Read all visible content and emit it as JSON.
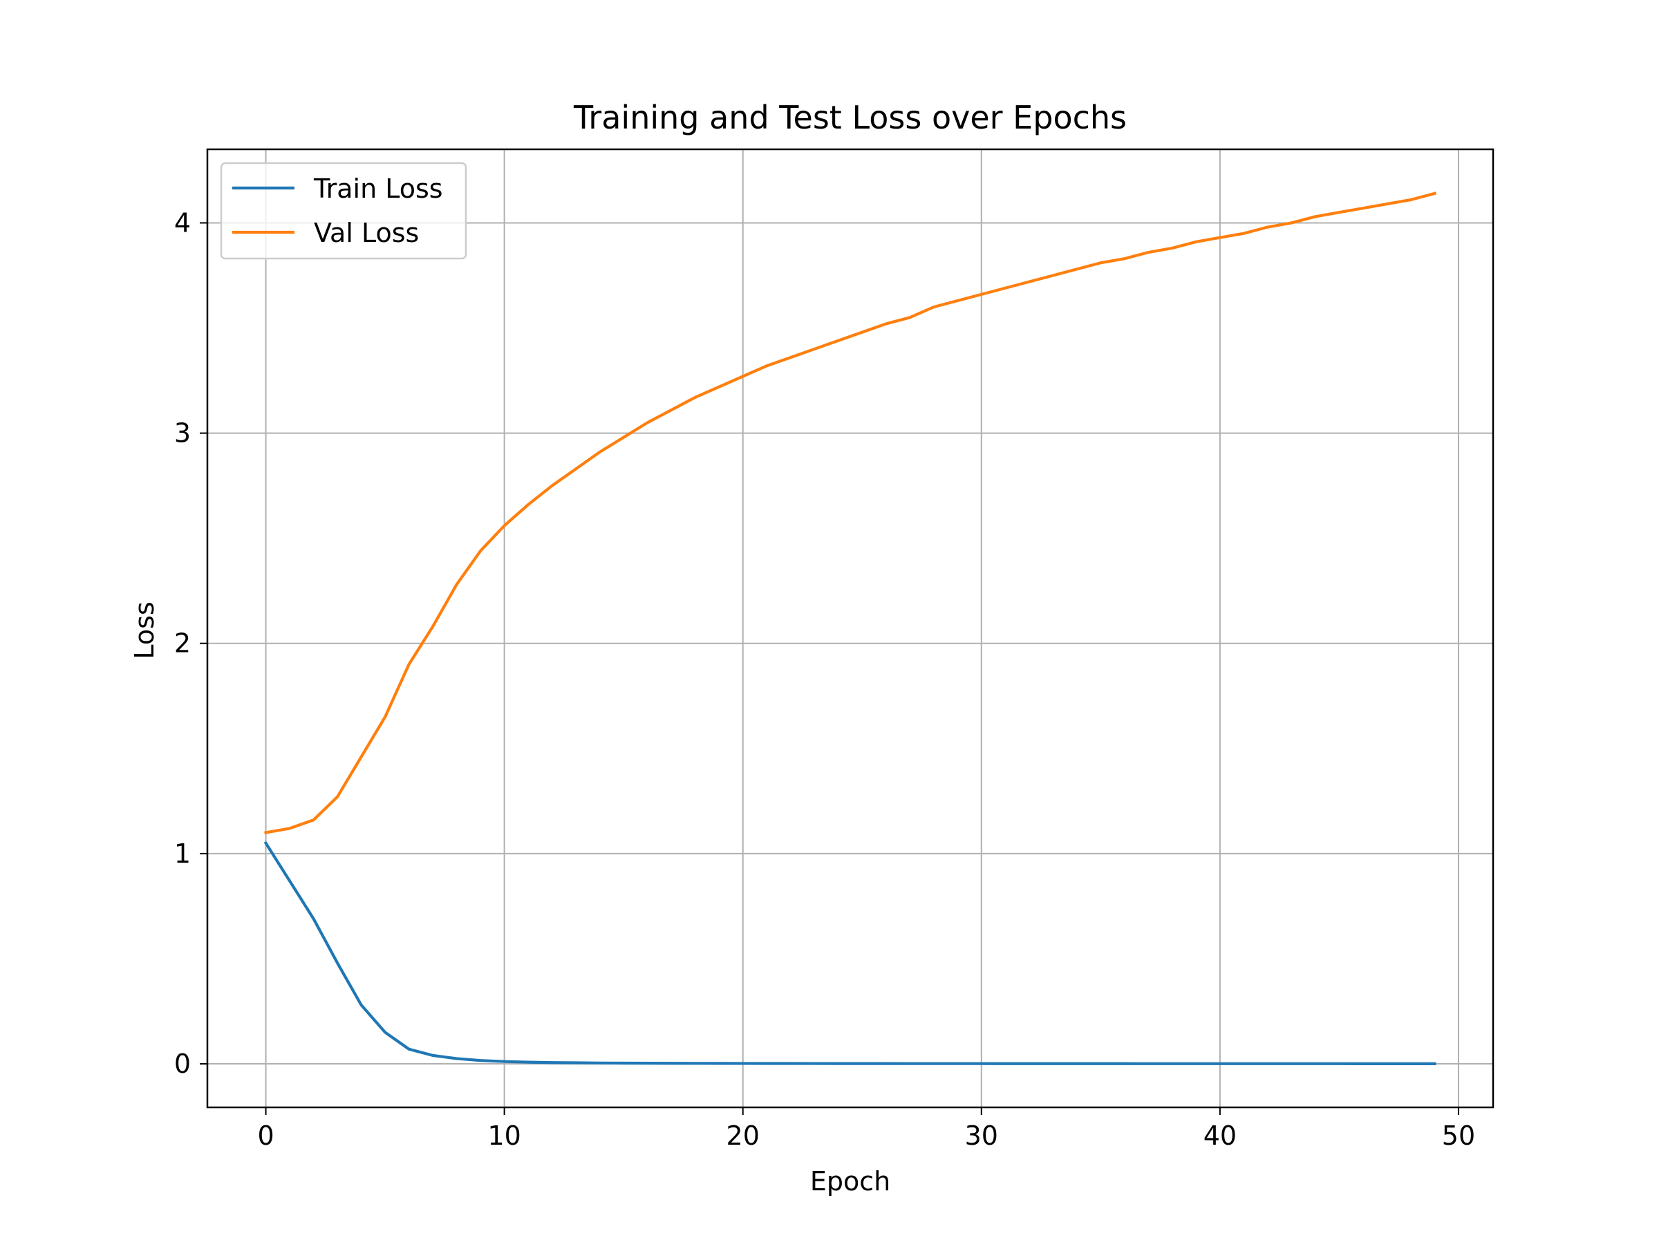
{
  "chart_data": {
    "type": "line",
    "title": "Training and Test Loss over Epochs",
    "xlabel": "Epoch",
    "ylabel": "Loss",
    "xlim": [
      -2.45,
      51.45
    ],
    "ylim": [
      -0.207,
      4.35
    ],
    "xticks": [
      0,
      10,
      20,
      30,
      40,
      50
    ],
    "yticks": [
      0,
      1,
      2,
      3,
      4
    ],
    "grid": true,
    "legend_position": "upper-left",
    "x": [
      0,
      1,
      2,
      3,
      4,
      5,
      6,
      7,
      8,
      9,
      10,
      11,
      12,
      13,
      14,
      15,
      16,
      17,
      18,
      19,
      20,
      21,
      22,
      23,
      24,
      25,
      26,
      27,
      28,
      29,
      30,
      31,
      32,
      33,
      34,
      35,
      36,
      37,
      38,
      39,
      40,
      41,
      42,
      43,
      44,
      45,
      46,
      47,
      48,
      49
    ],
    "series": [
      {
        "name": "Train Loss",
        "color": "#1f77b4",
        "values": [
          1.05,
          0.87,
          0.69,
          0.48,
          0.28,
          0.15,
          0.07,
          0.04,
          0.025,
          0.016,
          0.011,
          0.008,
          0.006,
          0.005,
          0.004,
          0.0035,
          0.003,
          0.0027,
          0.0024,
          0.0022,
          0.002,
          0.0018,
          0.0017,
          0.0016,
          0.0015,
          0.0014,
          0.0013,
          0.0012,
          0.0012,
          0.0011,
          0.0011,
          0.001,
          0.001,
          0.001,
          0.0009,
          0.0009,
          0.0009,
          0.0008,
          0.0008,
          0.0008,
          0.0008,
          0.0007,
          0.0007,
          0.0007,
          0.0007,
          0.0007,
          0.0006,
          0.0006,
          0.0006,
          0.0006
        ]
      },
      {
        "name": "Val Loss",
        "color": "#ff7f0e",
        "values": [
          1.1,
          1.12,
          1.16,
          1.27,
          1.46,
          1.65,
          1.9,
          2.08,
          2.28,
          2.44,
          2.56,
          2.66,
          2.75,
          2.83,
          2.91,
          2.98,
          3.05,
          3.11,
          3.17,
          3.22,
          3.27,
          3.32,
          3.36,
          3.4,
          3.44,
          3.48,
          3.52,
          3.55,
          3.6,
          3.63,
          3.66,
          3.69,
          3.72,
          3.75,
          3.78,
          3.81,
          3.83,
          3.86,
          3.88,
          3.91,
          3.93,
          3.95,
          3.98,
          4.0,
          4.03,
          4.05,
          4.07,
          4.09,
          4.11,
          4.14
        ]
      }
    ]
  }
}
